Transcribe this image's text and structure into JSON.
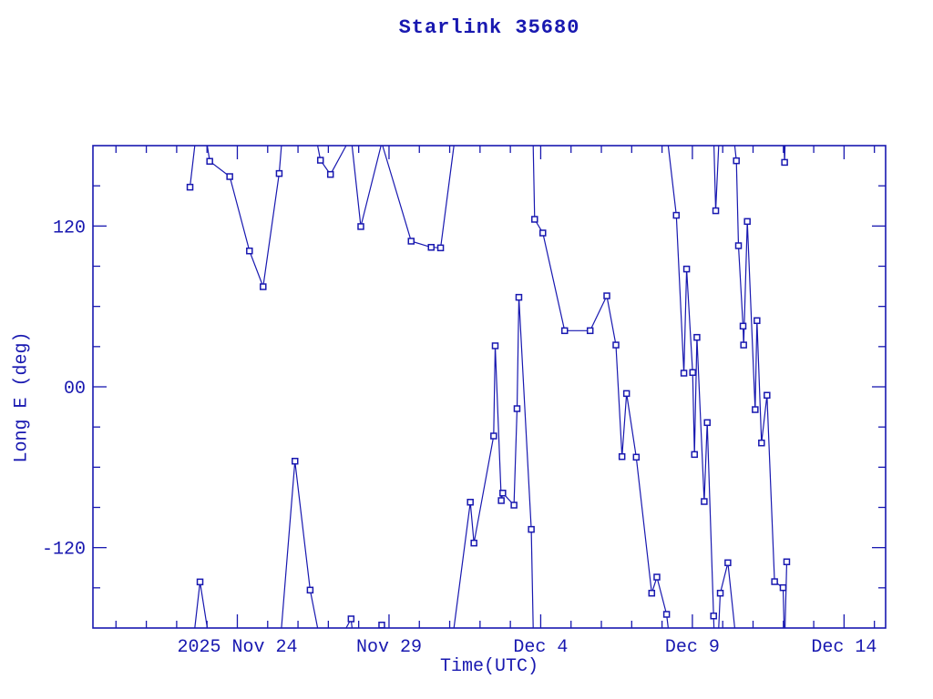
{
  "title": "Starlink 35680",
  "colors": {
    "plot": "#1818b0",
    "background": "#ffffff",
    "marker_fill": "#ffffff"
  },
  "chart_data": {
    "type": "line",
    "title": "Starlink 35680",
    "xlabel": "Time(UTC)",
    "ylabel": "Long E (deg)",
    "x_unit": "days after 2025 Nov 24 00:00 UTC",
    "xlim": [
      -4.76,
      21.37
    ],
    "ylim": [
      -180,
      180
    ],
    "wrap_at": 180,
    "grid": false,
    "legend": "none",
    "x_major_ticks": [
      {
        "d": 0,
        "label": "2025 Nov 24"
      },
      {
        "d": 5,
        "label": "Nov 29"
      },
      {
        "d": 10,
        "label": "Dec  4"
      },
      {
        "d": 15,
        "label": "Dec  9"
      },
      {
        "d": 20,
        "label": "Dec 14"
      }
    ],
    "x_minor_step": 1,
    "y_major_ticks": [
      {
        "v": 120,
        "label": "120"
      },
      {
        "v": 0,
        "label": "00"
      },
      {
        "v": -120,
        "label": "-120"
      }
    ],
    "y_minor_step": 30,
    "points": [
      [
        -1.56,
        149.0
      ],
      [
        -1.23,
        -145.6
      ],
      [
        -0.91,
        168.3
      ],
      [
        -0.25,
        156.9
      ],
      [
        0.4,
        101.4
      ],
      [
        0.85,
        74.7
      ],
      [
        1.38,
        159.2
      ],
      [
        1.9,
        -55.5
      ],
      [
        2.4,
        -151.7
      ],
      [
        2.74,
        169.1
      ],
      [
        3.07,
        158.5
      ],
      [
        3.75,
        -173.2
      ],
      [
        4.07,
        119.6
      ],
      [
        4.76,
        -177.8
      ],
      [
        5.73,
        108.7
      ],
      [
        6.39,
        104.1
      ],
      [
        6.7,
        103.7
      ],
      [
        7.68,
        -86.1
      ],
      [
        7.8,
        -116.6
      ],
      [
        8.45,
        -36.7
      ],
      [
        8.5,
        30.6
      ],
      [
        8.7,
        -84.9
      ],
      [
        8.75,
        -79.3
      ],
      [
        9.12,
        -88.3
      ],
      [
        9.22,
        -16.3
      ],
      [
        9.28,
        66.8
      ],
      [
        9.69,
        -106.4
      ],
      [
        9.8,
        125.0
      ],
      [
        10.07,
        114.8
      ],
      [
        10.79,
        41.9
      ],
      [
        11.63,
        41.9
      ],
      [
        12.18,
        67.9
      ],
      [
        12.48,
        31.2
      ],
      [
        12.68,
        -52.1
      ],
      [
        12.83,
        -5.0
      ],
      [
        13.15,
        -52.5
      ],
      [
        13.66,
        -154.0
      ],
      [
        13.83,
        -142.0
      ],
      [
        14.15,
        -169.8
      ],
      [
        14.47,
        128.0
      ],
      [
        14.72,
        10.2
      ],
      [
        14.81,
        87.9
      ],
      [
        15.01,
        10.7
      ],
      [
        15.07,
        -50.5
      ],
      [
        15.15,
        36.9
      ],
      [
        15.39,
        -85.6
      ],
      [
        15.49,
        -26.7
      ],
      [
        15.7,
        -171.0
      ],
      [
        15.77,
        131.4
      ],
      [
        15.92,
        -154.0
      ],
      [
        16.17,
        -131.3
      ],
      [
        16.45,
        168.7
      ],
      [
        16.52,
        105.3
      ],
      [
        16.67,
        45.3
      ],
      [
        16.69,
        31.2
      ],
      [
        16.81,
        123.4
      ],
      [
        17.07,
        -17.0
      ],
      [
        17.13,
        49.4
      ],
      [
        17.28,
        -41.9
      ],
      [
        17.46,
        -6.3
      ],
      [
        17.71,
        -145.4
      ],
      [
        17.99,
        -149.9
      ],
      [
        18.04,
        167.5
      ],
      [
        18.11,
        -130.6
      ]
    ]
  }
}
